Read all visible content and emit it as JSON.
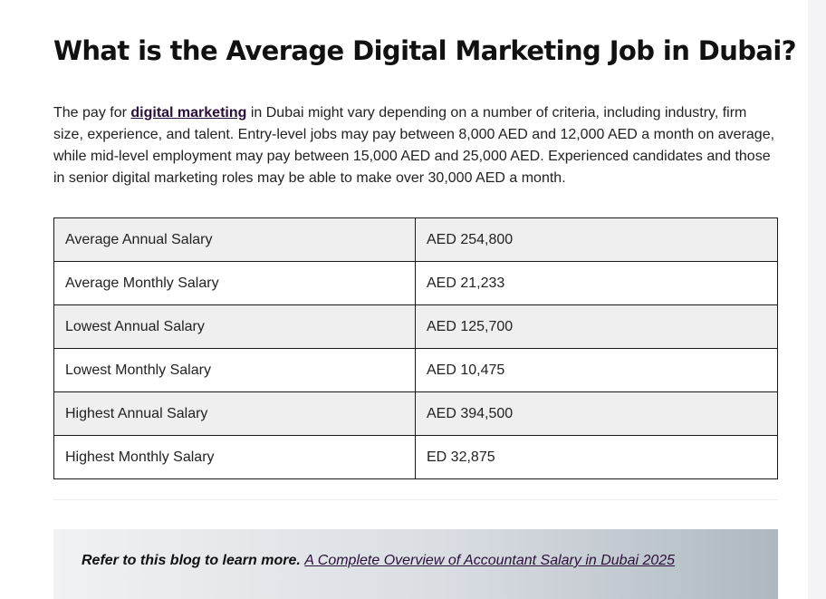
{
  "article": {
    "title": "What is the Average Digital Marketing Job in Dubai?",
    "intro": {
      "before_link": "The pay for ",
      "link_text": "digital marketing",
      "after_link": " in Dubai might vary depending on a number of criteria, including industry, firm size, experience, and talent. Entry-level jobs may pay between 8,000 AED and 12,000 AED a month on average, while mid-level employment may pay between 15,000 AED and 25,000 AED. Experienced candidates and those in senior digital marketing roles may be able to make over 30,000 AED a month."
    }
  },
  "salary_table": {
    "rows": [
      {
        "label": "Average Annual Salary",
        "value": "AED 254,800"
      },
      {
        "label": "Average Monthly Salary",
        "value": "AED 21,233"
      },
      {
        "label": "Lowest Annual Salary",
        "value": "AED 125,700"
      },
      {
        "label": "Lowest Monthly Salary",
        "value": "AED 10,475"
      },
      {
        "label": "Highest Annual Salary",
        "value": "AED 394,500"
      },
      {
        "label": "Highest Monthly Salary",
        "value": "ED 32,875"
      }
    ]
  },
  "callout": {
    "prefix": "Refer to this blog to learn more. ",
    "link_text": "A Complete Overview of Accountant Salary in Dubai 2025"
  },
  "colors": {
    "link": "#2a0f3a",
    "row_shade": "#efefef",
    "border": "#1a1a1a"
  }
}
